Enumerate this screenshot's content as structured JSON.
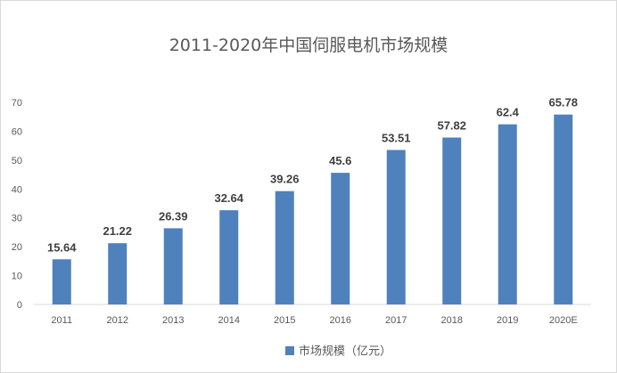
{
  "chart_data": {
    "type": "bar",
    "title": "2011-2020年中国伺服电机市场规模",
    "categories": [
      "2011",
      "2012",
      "2013",
      "2014",
      "2015",
      "2016",
      "2017",
      "2018",
      "2019",
      "2020E"
    ],
    "series": [
      {
        "name": "市场规模（亿元）",
        "values": [
          15.64,
          21.22,
          26.39,
          32.64,
          39.26,
          45.6,
          53.51,
          57.82,
          62.4,
          65.78
        ],
        "data_labels": [
          "15.64",
          "21.22",
          "26.39",
          "32.64",
          "39.26",
          "45.6",
          "53.51",
          "57.82",
          "62.4",
          "65.78"
        ],
        "color": "#4f81bd"
      }
    ],
    "y_ticks": [
      0,
      10,
      20,
      30,
      40,
      50,
      60,
      70
    ],
    "ylim": [
      0,
      70
    ],
    "grid": false,
    "legend_position": "bottom",
    "colors": {
      "text": "#595959",
      "label": "#404040",
      "axis": "#d9d9d9"
    }
  }
}
